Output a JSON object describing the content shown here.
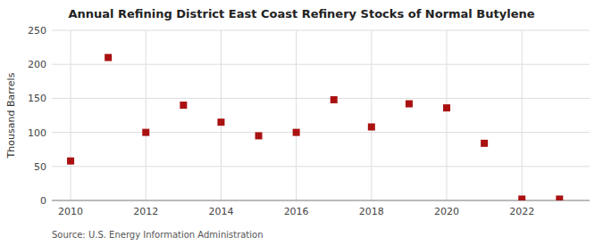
{
  "chart_data": {
    "type": "scatter",
    "title": "Annual Refining District East Coast Refinery Stocks of Normal Butylene",
    "y_label": "Thousand Barrels",
    "source": "Source: U.S. Energy Information Administration",
    "x": [
      2010,
      2011,
      2012,
      2013,
      2014,
      2015,
      2016,
      2017,
      2018,
      2019,
      2020,
      2021,
      2022,
      2023
    ],
    "values": [
      58,
      210,
      100,
      140,
      115,
      95,
      100,
      148,
      108,
      142,
      136,
      84,
      2,
      2
    ],
    "color": "#aa1111",
    "marker": "square",
    "xlim": [
      2009.5,
      2023.8
    ],
    "ylim": [
      0,
      250
    ],
    "xticks": [
      2010,
      2012,
      2014,
      2016,
      2018,
      2020,
      2022
    ],
    "yticks": [
      0,
      50,
      100,
      150,
      200,
      250
    ],
    "grid": true
  }
}
